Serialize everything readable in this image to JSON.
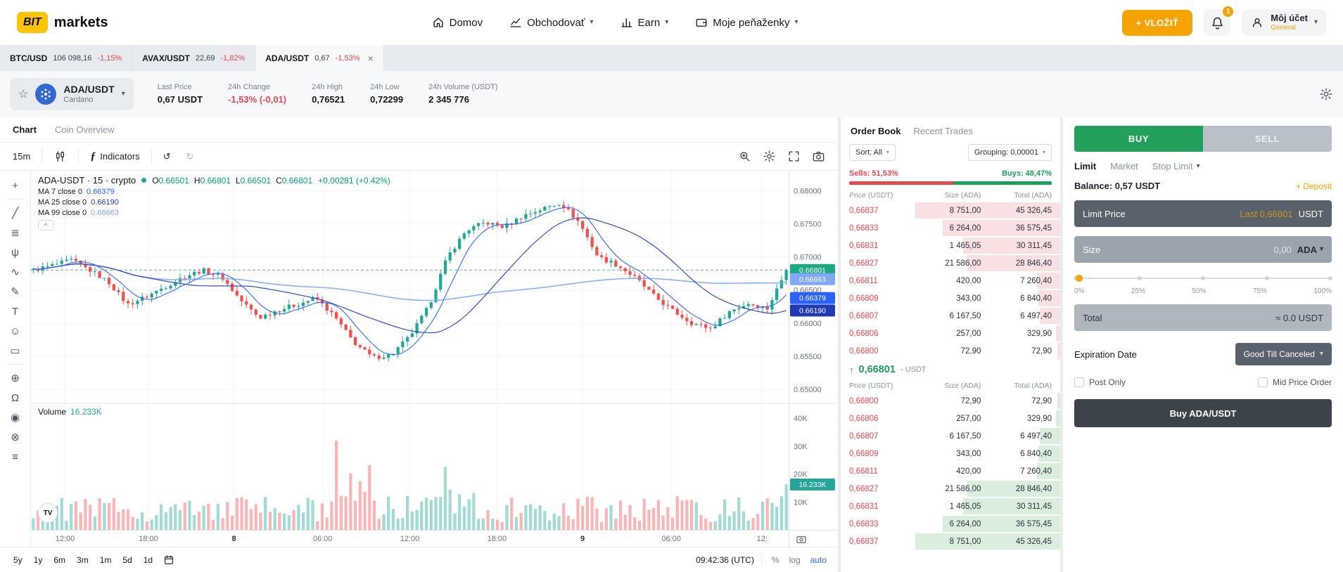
{
  "colors": {
    "up": "#26a69a",
    "down": "#ef5350",
    "accent": "#f5a300",
    "buy_green": "#21a15b",
    "sell_red": "#e5484d",
    "link_blue": "#2962ff"
  },
  "navbar": {
    "logo_text": "BIT",
    "logo_suffix": "markets",
    "items": [
      {
        "label": "Domov",
        "icon": "home-icon",
        "caret": false
      },
      {
        "label": "Obchodovať",
        "icon": "trade-icon",
        "caret": true
      },
      {
        "label": "Earn",
        "icon": "earn-icon",
        "caret": true
      },
      {
        "label": "Moje peňaženky",
        "icon": "wallet-icon",
        "caret": true
      }
    ],
    "deposit_label": "+ VLOŽIŤ",
    "notification_count": "1",
    "account_title": "Môj účet",
    "account_subtitle": "General"
  },
  "pair_tabs": [
    {
      "pair": "BTC/USD",
      "price": "106 098,16",
      "change": "-1,15%",
      "active": false
    },
    {
      "pair": "AVAX/USDT",
      "price": "22,69",
      "change": "-1,82%",
      "active": false
    },
    {
      "pair": "ADA/USDT",
      "price": "0,67",
      "change": "-1,53%",
      "active": true
    }
  ],
  "pair_header": {
    "pair": "ADA/USDT",
    "name": "Cardano",
    "stats": [
      {
        "label": "Last Price",
        "value": "0,67 USDT",
        "negative": false
      },
      {
        "label": "24h Change",
        "value": "-1,53% (-0,01)",
        "negative": true
      },
      {
        "label": "24h High",
        "value": "0,76521",
        "negative": false
      },
      {
        "label": "24h Low",
        "value": "0,72299",
        "negative": false
      },
      {
        "label": "24h Volume (USDT)",
        "value": "2 345 776",
        "negative": false
      }
    ]
  },
  "chart": {
    "tabs": [
      {
        "label": "Chart",
        "active": true
      },
      {
        "label": "Coin Overview",
        "active": false
      }
    ],
    "interval": "15m",
    "indicators_label": "Indicators",
    "tv_logo": "TV",
    "legend": {
      "title": "ADA-USDT · 15 · crypto",
      "ohlc": [
        {
          "k": "O",
          "v": "0.66501"
        },
        {
          "k": "H",
          "v": "0.66801"
        },
        {
          "k": "L",
          "v": "0.66501"
        },
        {
          "k": "C",
          "v": "0.66801"
        }
      ],
      "change": "+0.00281 (+0.42%)"
    },
    "ma_rows": [
      {
        "label": "MA 7 close 0",
        "value": "0.66379",
        "color": "#2962ff"
      },
      {
        "label": "MA 25 close 0",
        "value": "0.66190",
        "color": "#1f3bb3"
      },
      {
        "label": "MA 99 close 0",
        "value": "0.66663",
        "color": "#7fa8f8"
      }
    ],
    "rail_tools": [
      {
        "tool": "crosshair",
        "glyph": "+"
      },
      {
        "tool": "trend-line",
        "glyph": "╱"
      },
      {
        "tool": "fib-retracement",
        "glyph": "≣"
      },
      {
        "tool": "pitchfork",
        "glyph": "ψ"
      },
      {
        "tool": "wave-pattern",
        "glyph": "∿"
      },
      {
        "tool": "brush",
        "glyph": "✎"
      },
      {
        "tool": "text",
        "glyph": "T"
      },
      {
        "tool": "emoji",
        "glyph": "☺"
      },
      {
        "tool": "measure",
        "glyph": "▭"
      },
      {
        "tool": "zoom-in",
        "glyph": "⊕"
      },
      {
        "tool": "magnet",
        "glyph": "Ω"
      },
      {
        "tool": "show-hide",
        "glyph": "◉"
      },
      {
        "tool": "remove",
        "glyph": "⊗"
      },
      {
        "tool": "layers",
        "glyph": "≡"
      }
    ],
    "price_ticks": [
      "0.68000",
      "0.67500",
      "0.67000",
      "0.66500",
      "0.66000",
      "0.65500",
      "0.65000"
    ],
    "price_badges": [
      {
        "value": "0.66801",
        "price": 0.66801,
        "color": "#1ca883"
      },
      {
        "value": "0.66663",
        "price": 0.66663,
        "color": "#7fa8f8"
      },
      {
        "value": "0.66379",
        "price": 0.66379,
        "color": "#2962ff"
      },
      {
        "value": "0.66190",
        "price": 0.6619,
        "color": "#1f3bb3"
      }
    ],
    "volume_label": "Volume",
    "volume_value": "16.233K",
    "volume_ticks": [
      "40K",
      "30K",
      "20K",
      "10K"
    ],
    "volume_badge": "16.233K",
    "time_labels": [
      {
        "t": "12:00",
        "x": 0.045,
        "day": false
      },
      {
        "t": "18:00",
        "x": 0.155,
        "day": false
      },
      {
        "t": "8",
        "x": 0.268,
        "day": true
      },
      {
        "t": "06:00",
        "x": 0.385,
        "day": false
      },
      {
        "t": "12:00",
        "x": 0.5,
        "day": false
      },
      {
        "t": "18:00",
        "x": 0.615,
        "day": false
      },
      {
        "t": "9",
        "x": 0.728,
        "day": true
      },
      {
        "t": "06:00",
        "x": 0.845,
        "day": false
      },
      {
        "t": "12:",
        "x": 0.965,
        "day": false
      }
    ],
    "ranges": [
      "5y",
      "1y",
      "6m",
      "3m",
      "1m",
      "5d",
      "1d"
    ],
    "clock": "09:42:36 (UTC)",
    "scale_buttons": [
      "%",
      "log",
      "auto"
    ],
    "price_min": 0.648,
    "price_max": 0.683,
    "current_price": 0.66801,
    "anchors": [
      0.668,
      0.6687,
      0.6695,
      0.668,
      0.6662,
      0.6628,
      0.664,
      0.6655,
      0.667,
      0.668,
      0.667,
      0.6635,
      0.6608,
      0.662,
      0.6628,
      0.6638,
      0.661,
      0.6572,
      0.6548,
      0.6552,
      0.658,
      0.6625,
      0.67,
      0.674,
      0.6752,
      0.6745,
      0.6762,
      0.6772,
      0.6782,
      0.6752,
      0.67,
      0.6688,
      0.6668,
      0.664,
      0.6618,
      0.66,
      0.6592,
      0.6618,
      0.663,
      0.6622,
      0.668
    ]
  },
  "orderbook": {
    "tabs": [
      {
        "label": "Order Book",
        "active": true
      },
      {
        "label": "Recent Trades",
        "active": false
      }
    ],
    "sort_label": "Sort: All",
    "grouping_label": "Grouping: 0,00001",
    "sells_label": "Sells: 51,53%",
    "buys_label": "Buys: 48,47%",
    "sells_pct": 51.53,
    "columns": [
      "Price (USDT)",
      "Size (ADA)",
      "Total (ADA)"
    ],
    "sells": [
      {
        "price": "0,66837",
        "size": "8 751,00",
        "total": "45 326,45",
        "depth": 1.0
      },
      {
        "price": "0,66833",
        "size": "6 264,00",
        "total": "36 575,45",
        "depth": 0.81
      },
      {
        "price": "0,66831",
        "size": "1 465,05",
        "total": "30 311,45",
        "depth": 0.67
      },
      {
        "price": "0,66827",
        "size": "21 586,00",
        "total": "28 846,40",
        "depth": 0.64
      },
      {
        "price": "0,66811",
        "size": "420,00",
        "total": "7 260,40",
        "depth": 0.16
      },
      {
        "price": "0,66809",
        "size": "343,00",
        "total": "6 840,40",
        "depth": 0.15
      },
      {
        "price": "0,66807",
        "size": "6 167,50",
        "total": "6 497,40",
        "depth": 0.14
      },
      {
        "price": "0,66806",
        "size": "257,00",
        "total": "329,90",
        "depth": 0.03
      },
      {
        "price": "0,66800",
        "size": "72,90",
        "total": "72,90",
        "depth": 0.02
      }
    ],
    "mid_price": "0,66801",
    "mid_suffix": "- USDT",
    "buys": [
      {
        "price": "0,66800",
        "size": "72,90",
        "total": "72,90",
        "depth": 0.02
      },
      {
        "price": "0,66806",
        "size": "257,00",
        "total": "329,90",
        "depth": 0.03
      },
      {
        "price": "0,66807",
        "size": "6 167,50",
        "total": "6 497,40",
        "depth": 0.14
      },
      {
        "price": "0,66809",
        "size": "343,00",
        "total": "6 840,40",
        "depth": 0.15
      },
      {
        "price": "0,66811",
        "size": "420,00",
        "total": "7 260,40",
        "depth": 0.16
      },
      {
        "price": "0,66827",
        "size": "21 586,00",
        "total": "28 846,40",
        "depth": 0.64
      },
      {
        "price": "0,66831",
        "size": "1 465,05",
        "total": "30 311,45",
        "depth": 0.67
      },
      {
        "price": "0,66833",
        "size": "6 264,00",
        "total": "36 575,45",
        "depth": 0.81
      },
      {
        "price": "0,66837",
        "size": "8 751,00",
        "total": "45 326,45",
        "depth": 1.0
      }
    ]
  },
  "trade": {
    "side_tabs": [
      {
        "label": "BUY",
        "active": true
      },
      {
        "label": "SELL",
        "active": false
      }
    ],
    "type_tabs": [
      {
        "label": "Limit",
        "active": true,
        "caret": false
      },
      {
        "label": "Market",
        "active": false,
        "caret": false
      },
      {
        "label": "Stop Limit",
        "active": false,
        "caret": true
      }
    ],
    "balance_label": "Balance: 0,57 USDT",
    "deposit_link": "+ Deposit",
    "limit_price": {
      "label": "Limit Price",
      "hint": "Last 0,66801",
      "unit": "USDT"
    },
    "size": {
      "label": "Size",
      "placeholder": "0,00",
      "unit": "ADA"
    },
    "slider_labels": [
      "0%",
      "25%",
      "50%",
      "75%",
      "100%"
    ],
    "total": {
      "label": "Total",
      "value": "≈ 0.0 USDT"
    },
    "expiration": {
      "label": "Expiration Date",
      "value": "Good Till Canceled"
    },
    "post_only": "Post Only",
    "mid_price_order": "Mid Price Order",
    "submit_label": "Buy ADA/USDT"
  }
}
